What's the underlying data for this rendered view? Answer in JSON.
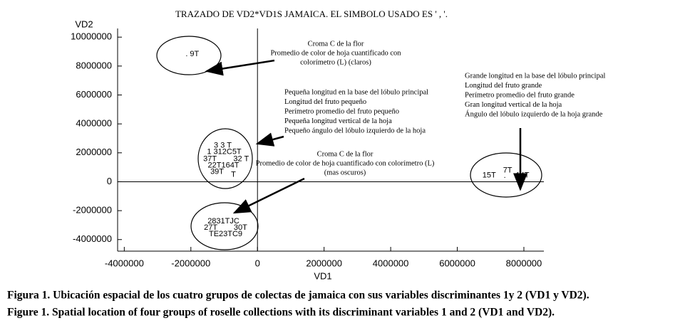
{
  "chart_data": {
    "type": "scatter",
    "title": "TRAZADO DE VD2*VD1S JAMAICA. EL SIMBOLO USADO ES ' , '.",
    "x_label": "VD1",
    "y_label": "VD2",
    "xlim": [
      -4200000,
      8600000
    ],
    "ylim": [
      -4800000,
      10600000
    ],
    "xticks": [
      -4000000,
      -2000000,
      0,
      2000000,
      4000000,
      6000000,
      8000000
    ],
    "yticks": [
      -4000000,
      -2000000,
      0,
      2000000,
      4000000,
      6000000,
      8000000,
      10000000
    ],
    "points": [
      {
        "label": ". 9T",
        "x": -1957000,
        "y": 8820000
      },
      {
        "label": "3 3 T",
        "x": -1043000,
        "y": 2500000
      },
      {
        "label": "1 312C5T",
        "x": -1000000,
        "y": 2060000
      },
      {
        "label": "37T",
        "x": -1426000,
        "y": 1570000
      },
      {
        "label": "32 T",
        "x": -490000,
        "y": 1570000
      },
      {
        "label": "22T164T",
        "x": -1021000,
        "y": 1130000
      },
      {
        "label": "39T",
        "x": -1213000,
        "y": 690000
      },
      {
        "label": "T",
        "x": -723000,
        "y": 490000
      },
      {
        "label": "2831TJC",
        "x": -1021000,
        "y": -2750000
      },
      {
        "label": "27T",
        "x": -1404000,
        "y": -3190000
      },
      {
        "label": "30T",
        "x": -511000,
        "y": -3190000
      },
      {
        "label": "TE23TC9",
        "x": -957000,
        "y": -3630000
      },
      {
        "label": "15T",
        "x": 6957000,
        "y": 440000
      },
      {
        "label": "7T",
        "x": 7511000,
        "y": 780000
      },
      {
        "label": ".",
        "x": 7426000,
        "y": 400000
      },
      {
        "label": "14T",
        "x": 7957000,
        "y": 440000
      }
    ],
    "annotations": [
      {
        "lines": [
          "Croma C de la flor",
          "Promedio de color de hoja cuantificado con",
          "colorímetro (L) (claros)"
        ]
      },
      {
        "lines": [
          "Pequeña longitud en la base del lóbulo principal",
          "Longitud del fruto pequeño",
          "Perímetro promedio del fruto pequeño",
          "Pequeña longitud vertical de la hoja",
          "Pequeño ángulo del lóbulo izquierdo de la hoja"
        ]
      },
      {
        "lines": [
          "Croma C de la flor",
          "Promedio de color de hoja cuantificado con colorímetro (L)",
          "(mas oscuros)"
        ]
      },
      {
        "lines": [
          "Grande longitud en la base del lóbulo principal",
          "Longitud del fruto grande",
          "Perímetro promedio del fruto grande",
          "Gran longitud vertical de la hoja",
          "Ángulo del lóbulo izquierdo de la hoja grande"
        ]
      }
    ]
  },
  "caption": [
    "Figura 1. Ubicación espacial de los cuatro grupos de colectas de jamaica con sus variables discriminantes 1y 2 (VD1 y VD2).",
    "Figure 1. Spatial location of four groups of roselle collections with its discriminant variables 1 and 2 (VD1 and VD2)."
  ]
}
